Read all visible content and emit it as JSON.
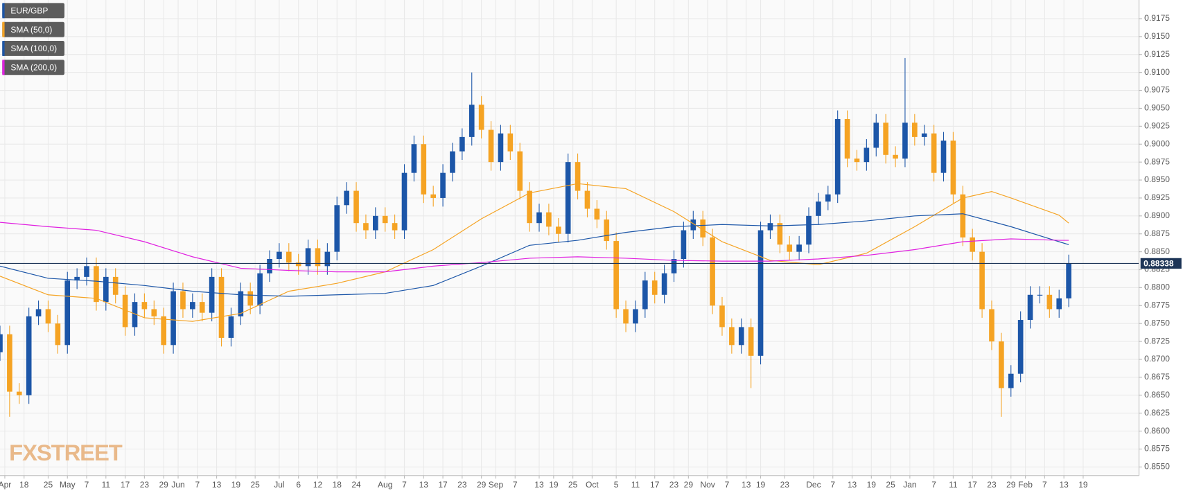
{
  "chart_data": {
    "type": "candlestick",
    "watermark": "FXSTREET",
    "grid": true,
    "last_price": 0.88338,
    "ylim": [
      0.8538,
      0.9201
    ],
    "yticks": [
      {
        "value": 0.855,
        "label": "0.8550"
      },
      {
        "value": 0.8575,
        "label": "0.8575"
      },
      {
        "value": 0.86,
        "label": "0.8600"
      },
      {
        "value": 0.8625,
        "label": "0.8625"
      },
      {
        "value": 0.865,
        "label": "0.8650"
      },
      {
        "value": 0.8675,
        "label": "0.8675"
      },
      {
        "value": 0.87,
        "label": "0.8700"
      },
      {
        "value": 0.8725,
        "label": "0.8725"
      },
      {
        "value": 0.875,
        "label": "0.8750"
      },
      {
        "value": 0.8775,
        "label": "0.8775"
      },
      {
        "value": 0.88,
        "label": "0.8800"
      },
      {
        "value": 0.8825,
        "label": "0.8825"
      },
      {
        "value": 0.885,
        "label": "0.8850"
      },
      {
        "value": 0.8875,
        "label": "0.8875"
      },
      {
        "value": 0.89,
        "label": "0.8900"
      },
      {
        "value": 0.8925,
        "label": "0.8925"
      },
      {
        "value": 0.895,
        "label": "0.8950"
      },
      {
        "value": 0.8975,
        "label": "0.8975"
      },
      {
        "value": 0.9,
        "label": "0.9000"
      },
      {
        "value": 0.9025,
        "label": "0.9025"
      },
      {
        "value": 0.905,
        "label": "0.9050"
      },
      {
        "value": 0.9075,
        "label": "0.9075"
      },
      {
        "value": 0.91,
        "label": "0.9100"
      },
      {
        "value": 0.9125,
        "label": "0.9125"
      },
      {
        "value": 0.915,
        "label": "0.9150"
      },
      {
        "value": 0.9175,
        "label": "0.9175"
      }
    ],
    "xlim": [
      0,
      236.6
    ],
    "xticks": [
      {
        "value": 1,
        "label": "Apr"
      },
      {
        "value": 5,
        "label": "18"
      },
      {
        "value": 10,
        "label": "25"
      },
      {
        "value": 14,
        "label": "May"
      },
      {
        "value": 18,
        "label": "7"
      },
      {
        "value": 22,
        "label": "11"
      },
      {
        "value": 26,
        "label": "17"
      },
      {
        "value": 30,
        "label": "23"
      },
      {
        "value": 34,
        "label": "29"
      },
      {
        "value": 37,
        "label": "Jun"
      },
      {
        "value": 41,
        "label": "7"
      },
      {
        "value": 45,
        "label": "13"
      },
      {
        "value": 49,
        "label": "19"
      },
      {
        "value": 53,
        "label": "25"
      },
      {
        "value": 58,
        "label": "Jul"
      },
      {
        "value": 62,
        "label": "6"
      },
      {
        "value": 66,
        "label": "12"
      },
      {
        "value": 70,
        "label": "18"
      },
      {
        "value": 74,
        "label": "24"
      },
      {
        "value": 80,
        "label": "Aug"
      },
      {
        "value": 84,
        "label": "7"
      },
      {
        "value": 88,
        "label": "13"
      },
      {
        "value": 92,
        "label": "17"
      },
      {
        "value": 96,
        "label": "23"
      },
      {
        "value": 100,
        "label": "29"
      },
      {
        "value": 103,
        "label": "Sep"
      },
      {
        "value": 107,
        "label": "7"
      },
      {
        "value": 112,
        "label": "13"
      },
      {
        "value": 115,
        "label": "19"
      },
      {
        "value": 119,
        "label": "25"
      },
      {
        "value": 123,
        "label": "Oct"
      },
      {
        "value": 128,
        "label": "5"
      },
      {
        "value": 132,
        "label": "11"
      },
      {
        "value": 136,
        "label": "17"
      },
      {
        "value": 140,
        "label": "23"
      },
      {
        "value": 143,
        "label": "29"
      },
      {
        "value": 147,
        "label": "Nov"
      },
      {
        "value": 151,
        "label": "7"
      },
      {
        "value": 155,
        "label": "13"
      },
      {
        "value": 158,
        "label": "19"
      },
      {
        "value": 163,
        "label": "23"
      },
      {
        "value": 169,
        "label": "Dec"
      },
      {
        "value": 173,
        "label": "7"
      },
      {
        "value": 177,
        "label": "13"
      },
      {
        "value": 181,
        "label": "19"
      },
      {
        "value": 185,
        "label": "25"
      },
      {
        "value": 189,
        "label": "Jan"
      },
      {
        "value": 194,
        "label": "7"
      },
      {
        "value": 198,
        "label": "11"
      },
      {
        "value": 202,
        "label": "17"
      },
      {
        "value": 206,
        "label": "23"
      },
      {
        "value": 210,
        "label": "29"
      },
      {
        "value": 213,
        "label": "Feb"
      },
      {
        "value": 217,
        "label": "7"
      },
      {
        "value": 221,
        "label": "13"
      },
      {
        "value": 225,
        "label": "19"
      }
    ],
    "series": [
      {
        "name": "EUR/GBP",
        "color": "#1c56a8",
        "up_color": "#1c56a8",
        "down_color": "#f5a323",
        "x": [
          0,
          2,
          4,
          6,
          8,
          10,
          12,
          14,
          16,
          18,
          20,
          22,
          24,
          26,
          28,
          30,
          32,
          34,
          36,
          38,
          40,
          42,
          44,
          46,
          48,
          50,
          52,
          54,
          56,
          58,
          60,
          62,
          64,
          66,
          68,
          70,
          72,
          74,
          76,
          78,
          80,
          82,
          84,
          86,
          88,
          90,
          92,
          94,
          96,
          98,
          100,
          102,
          104,
          106,
          108,
          110,
          112,
          114,
          116,
          118,
          120,
          122,
          124,
          126,
          128,
          130,
          132,
          134,
          136,
          138,
          140,
          142,
          144,
          146,
          148,
          150,
          152,
          154,
          156,
          158,
          160,
          162,
          164,
          166,
          168,
          170,
          172,
          174,
          176,
          178,
          180,
          182,
          184,
          186,
          188,
          190,
          192,
          194,
          196,
          198,
          200,
          202,
          204,
          206,
          208,
          210,
          212,
          214,
          216,
          218,
          220,
          222
        ],
        "open": [
          0.871,
          0.8735,
          0.8655,
          0.865,
          0.876,
          0.877,
          0.875,
          0.872,
          0.881,
          0.8815,
          0.883,
          0.878,
          0.8815,
          0.879,
          0.8745,
          0.878,
          0.877,
          0.876,
          0.872,
          0.8795,
          0.877,
          0.878,
          0.8765,
          0.8815,
          0.873,
          0.876,
          0.8795,
          0.8775,
          0.882,
          0.884,
          0.885,
          0.8835,
          0.883,
          0.8855,
          0.883,
          0.885,
          0.8915,
          0.8935,
          0.889,
          0.888,
          0.89,
          0.889,
          0.888,
          0.896,
          0.9,
          0.893,
          0.8925,
          0.896,
          0.899,
          0.901,
          0.9055,
          0.902,
          0.8975,
          0.9015,
          0.899,
          0.8935,
          0.889,
          0.8905,
          0.8885,
          0.8875,
          0.8975,
          0.8935,
          0.891,
          0.8895,
          0.8865,
          0.877,
          0.875,
          0.877,
          0.881,
          0.879,
          0.882,
          0.884,
          0.888,
          0.8895,
          0.887,
          0.8775,
          0.8745,
          0.872,
          0.8745,
          0.8705,
          0.888,
          0.889,
          0.886,
          0.885,
          0.886,
          0.89,
          0.892,
          0.893,
          0.9035,
          0.898,
          0.8975,
          0.8995,
          0.903,
          0.8985,
          0.898,
          0.903,
          0.901,
          0.9015,
          0.896,
          0.9005,
          0.893,
          0.887,
          0.885,
          0.877,
          0.8725,
          0.866,
          0.868,
          0.8755,
          0.879,
          0.879,
          0.877,
          0.8785
        ],
        "high": [
          0.8747,
          0.8747,
          0.8667,
          0.8772,
          0.8782,
          0.8782,
          0.8762,
          0.8822,
          0.8827,
          0.8842,
          0.8842,
          0.8827,
          0.8827,
          0.8802,
          0.8792,
          0.8792,
          0.8782,
          0.8772,
          0.8807,
          0.8807,
          0.8792,
          0.8792,
          0.8827,
          0.8827,
          0.8772,
          0.8807,
          0.8807,
          0.8832,
          0.8852,
          0.8862,
          0.8862,
          0.8847,
          0.8867,
          0.8867,
          0.8862,
          0.8927,
          0.8947,
          0.8947,
          0.8902,
          0.8912,
          0.8912,
          0.8902,
          0.8972,
          0.9012,
          0.9012,
          0.8942,
          0.8972,
          0.9002,
          0.9022,
          0.91,
          0.9067,
          0.9032,
          0.9027,
          0.9027,
          0.9002,
          0.8947,
          0.8917,
          0.8917,
          0.8897,
          0.8987,
          0.8987,
          0.8947,
          0.8922,
          0.8907,
          0.8877,
          0.8782,
          0.8782,
          0.8822,
          0.8822,
          0.8832,
          0.8852,
          0.8892,
          0.8907,
          0.8907,
          0.8882,
          0.8787,
          0.8757,
          0.8757,
          0.8757,
          0.8892,
          0.8902,
          0.8902,
          0.8872,
          0.8872,
          0.8912,
          0.8932,
          0.8942,
          0.9047,
          0.9047,
          0.8992,
          0.9007,
          0.9042,
          0.9042,
          0.8997,
          0.912,
          0.9042,
          0.9027,
          0.9027,
          0.9017,
          0.9017,
          0.8942,
          0.8882,
          0.8862,
          0.8782,
          0.8737,
          0.8692,
          0.8767,
          0.8802,
          0.8802,
          0.8802,
          0.8797,
          0.8846
        ],
        "low": [
          0.8698,
          0.862,
          0.8638,
          0.8638,
          0.8748,
          0.8738,
          0.8708,
          0.8708,
          0.8798,
          0.8803,
          0.8768,
          0.8768,
          0.8778,
          0.8733,
          0.8733,
          0.8758,
          0.8748,
          0.8708,
          0.8708,
          0.8758,
          0.8758,
          0.8753,
          0.8753,
          0.8718,
          0.8718,
          0.8748,
          0.8763,
          0.8763,
          0.8808,
          0.8828,
          0.8823,
          0.8818,
          0.8818,
          0.8818,
          0.8818,
          0.8838,
          0.8903,
          0.8878,
          0.8868,
          0.8868,
          0.8878,
          0.8868,
          0.8868,
          0.8948,
          0.8918,
          0.8913,
          0.8913,
          0.8948,
          0.8978,
          0.8998,
          0.9008,
          0.8963,
          0.8963,
          0.8978,
          0.8923,
          0.8878,
          0.8878,
          0.8873,
          0.8863,
          0.8863,
          0.8923,
          0.8898,
          0.8883,
          0.8853,
          0.8758,
          0.8738,
          0.8738,
          0.8758,
          0.8778,
          0.8778,
          0.8808,
          0.8828,
          0.8868,
          0.8858,
          0.8763,
          0.8733,
          0.8708,
          0.8708,
          0.866,
          0.8693,
          0.8868,
          0.8848,
          0.8838,
          0.8838,
          0.8848,
          0.8888,
          0.8908,
          0.8918,
          0.8968,
          0.8963,
          0.8963,
          0.8983,
          0.8973,
          0.8968,
          0.8968,
          0.8998,
          0.8998,
          0.8948,
          0.8948,
          0.8918,
          0.8858,
          0.8838,
          0.8758,
          0.8713,
          0.862,
          0.8648,
          0.8668,
          0.8743,
          0.8778,
          0.8758,
          0.8758,
          0.8773
        ],
        "close": [
          0.8735,
          0.8655,
          0.865,
          0.876,
          0.877,
          0.875,
          0.872,
          0.881,
          0.8815,
          0.883,
          0.878,
          0.8815,
          0.879,
          0.8745,
          0.878,
          0.877,
          0.876,
          0.872,
          0.8795,
          0.877,
          0.878,
          0.8765,
          0.8815,
          0.873,
          0.876,
          0.8795,
          0.8775,
          0.882,
          0.884,
          0.885,
          0.8835,
          0.883,
          0.8855,
          0.883,
          0.885,
          0.8915,
          0.8935,
          0.889,
          0.888,
          0.89,
          0.889,
          0.888,
          0.896,
          0.9,
          0.893,
          0.8925,
          0.896,
          0.899,
          0.901,
          0.9055,
          0.902,
          0.8975,
          0.9015,
          0.899,
          0.8935,
          0.889,
          0.8905,
          0.8885,
          0.8875,
          0.8975,
          0.8935,
          0.891,
          0.8895,
          0.8865,
          0.877,
          0.875,
          0.877,
          0.881,
          0.879,
          0.882,
          0.884,
          0.888,
          0.8895,
          0.887,
          0.8775,
          0.8745,
          0.872,
          0.8745,
          0.8705,
          0.888,
          0.889,
          0.886,
          0.885,
          0.886,
          0.89,
          0.892,
          0.893,
          0.9035,
          0.898,
          0.8975,
          0.8995,
          0.903,
          0.8985,
          0.898,
          0.903,
          0.901,
          0.9015,
          0.896,
          0.9005,
          0.893,
          0.887,
          0.885,
          0.877,
          0.8725,
          0.866,
          0.868,
          0.8755,
          0.879,
          0.879,
          0.877,
          0.8785,
          0.8834
        ]
      }
    ],
    "overlays": [
      {
        "name": "SMA (50,0)",
        "color": "#f5a323",
        "x": [
          0,
          10,
          20,
          30,
          40,
          50,
          60,
          70,
          80,
          90,
          100,
          110,
          120,
          130,
          140,
          150,
          160,
          170,
          180,
          190,
          200,
          206,
          210,
          220,
          222
        ],
        "values": [
          0.8816,
          0.879,
          0.8785,
          0.8758,
          0.8753,
          0.8764,
          0.8795,
          0.8806,
          0.8822,
          0.8853,
          0.8896,
          0.8932,
          0.8945,
          0.8938,
          0.8906,
          0.8864,
          0.8838,
          0.8832,
          0.8848,
          0.8885,
          0.8925,
          0.8934,
          0.8925,
          0.8901,
          0.889
        ]
      },
      {
        "name": "SMA (100,0)",
        "color": "#1c56a8",
        "x": [
          0,
          10,
          20,
          30,
          40,
          50,
          60,
          70,
          80,
          90,
          100,
          110,
          120,
          130,
          140,
          150,
          160,
          170,
          180,
          190,
          200,
          210,
          220,
          222
        ],
        "values": [
          0.883,
          0.8813,
          0.8809,
          0.8803,
          0.8795,
          0.879,
          0.8788,
          0.879,
          0.8792,
          0.8803,
          0.883,
          0.8859,
          0.8866,
          0.8877,
          0.8885,
          0.8888,
          0.8886,
          0.8888,
          0.8893,
          0.89,
          0.8903,
          0.8885,
          0.8864,
          0.886
        ]
      },
      {
        "name": "SMA (200,0)",
        "color": "#e020e0",
        "x": [
          0,
          10,
          20,
          30,
          40,
          50,
          60,
          70,
          80,
          90,
          100,
          110,
          120,
          130,
          140,
          150,
          160,
          170,
          180,
          190,
          200,
          210,
          220,
          222
        ],
        "values": [
          0.8891,
          0.8885,
          0.888,
          0.8864,
          0.8843,
          0.8827,
          0.8824,
          0.8822,
          0.8822,
          0.883,
          0.8835,
          0.8841,
          0.8843,
          0.8841,
          0.8838,
          0.8837,
          0.8837,
          0.884,
          0.8845,
          0.8853,
          0.8864,
          0.8868,
          0.8866,
          0.8866
        ]
      }
    ]
  }
}
